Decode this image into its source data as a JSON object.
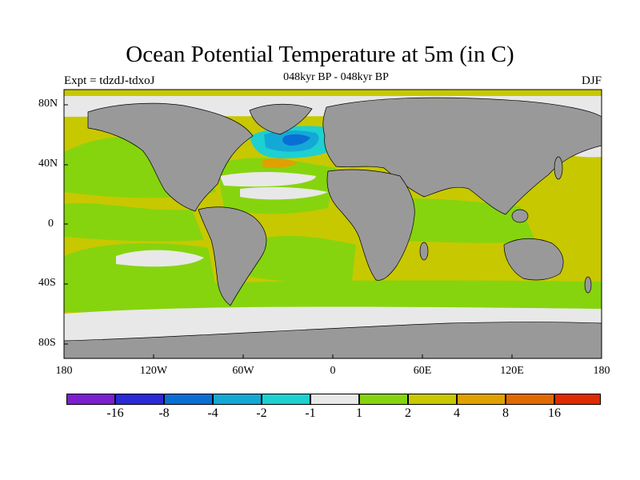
{
  "header": {
    "title": "Ocean Potential Temperature at 5m (in C)",
    "subtitle": "048kyr BP - 048kyr BP",
    "left_label": "Expt = tdzdJ-tdxoJ",
    "right_label": "DJF"
  },
  "axes": {
    "y_ticks": [
      "80N",
      "40N",
      "0",
      "40S",
      "80S"
    ],
    "x_ticks": [
      "180",
      "120W",
      "60W",
      "0",
      "60E",
      "120E",
      "180"
    ]
  },
  "colorbar": {
    "labels": [
      "-16",
      "-8",
      "-4",
      "-2",
      "-1",
      "1",
      "2",
      "4",
      "8",
      "16"
    ],
    "colors": [
      "#7b1fd0",
      "#2a2ad6",
      "#0a6fd4",
      "#14a8d6",
      "#1ed0d0",
      "#e8e8e8",
      "#86d40e",
      "#c8c800",
      "#e0a000",
      "#e06a00",
      "#dd2a00"
    ]
  },
  "map_colors": {
    "land": "#999999",
    "ice": "#cbcbcb",
    "ocean_base": "#c8c800",
    "warm": "#86d40e",
    "neutral": "#e8e8e8",
    "cold": "#1ed0d0",
    "cool": "#14a8d6",
    "cooler": "#0a6fd4",
    "hot": "#e0a000"
  }
}
